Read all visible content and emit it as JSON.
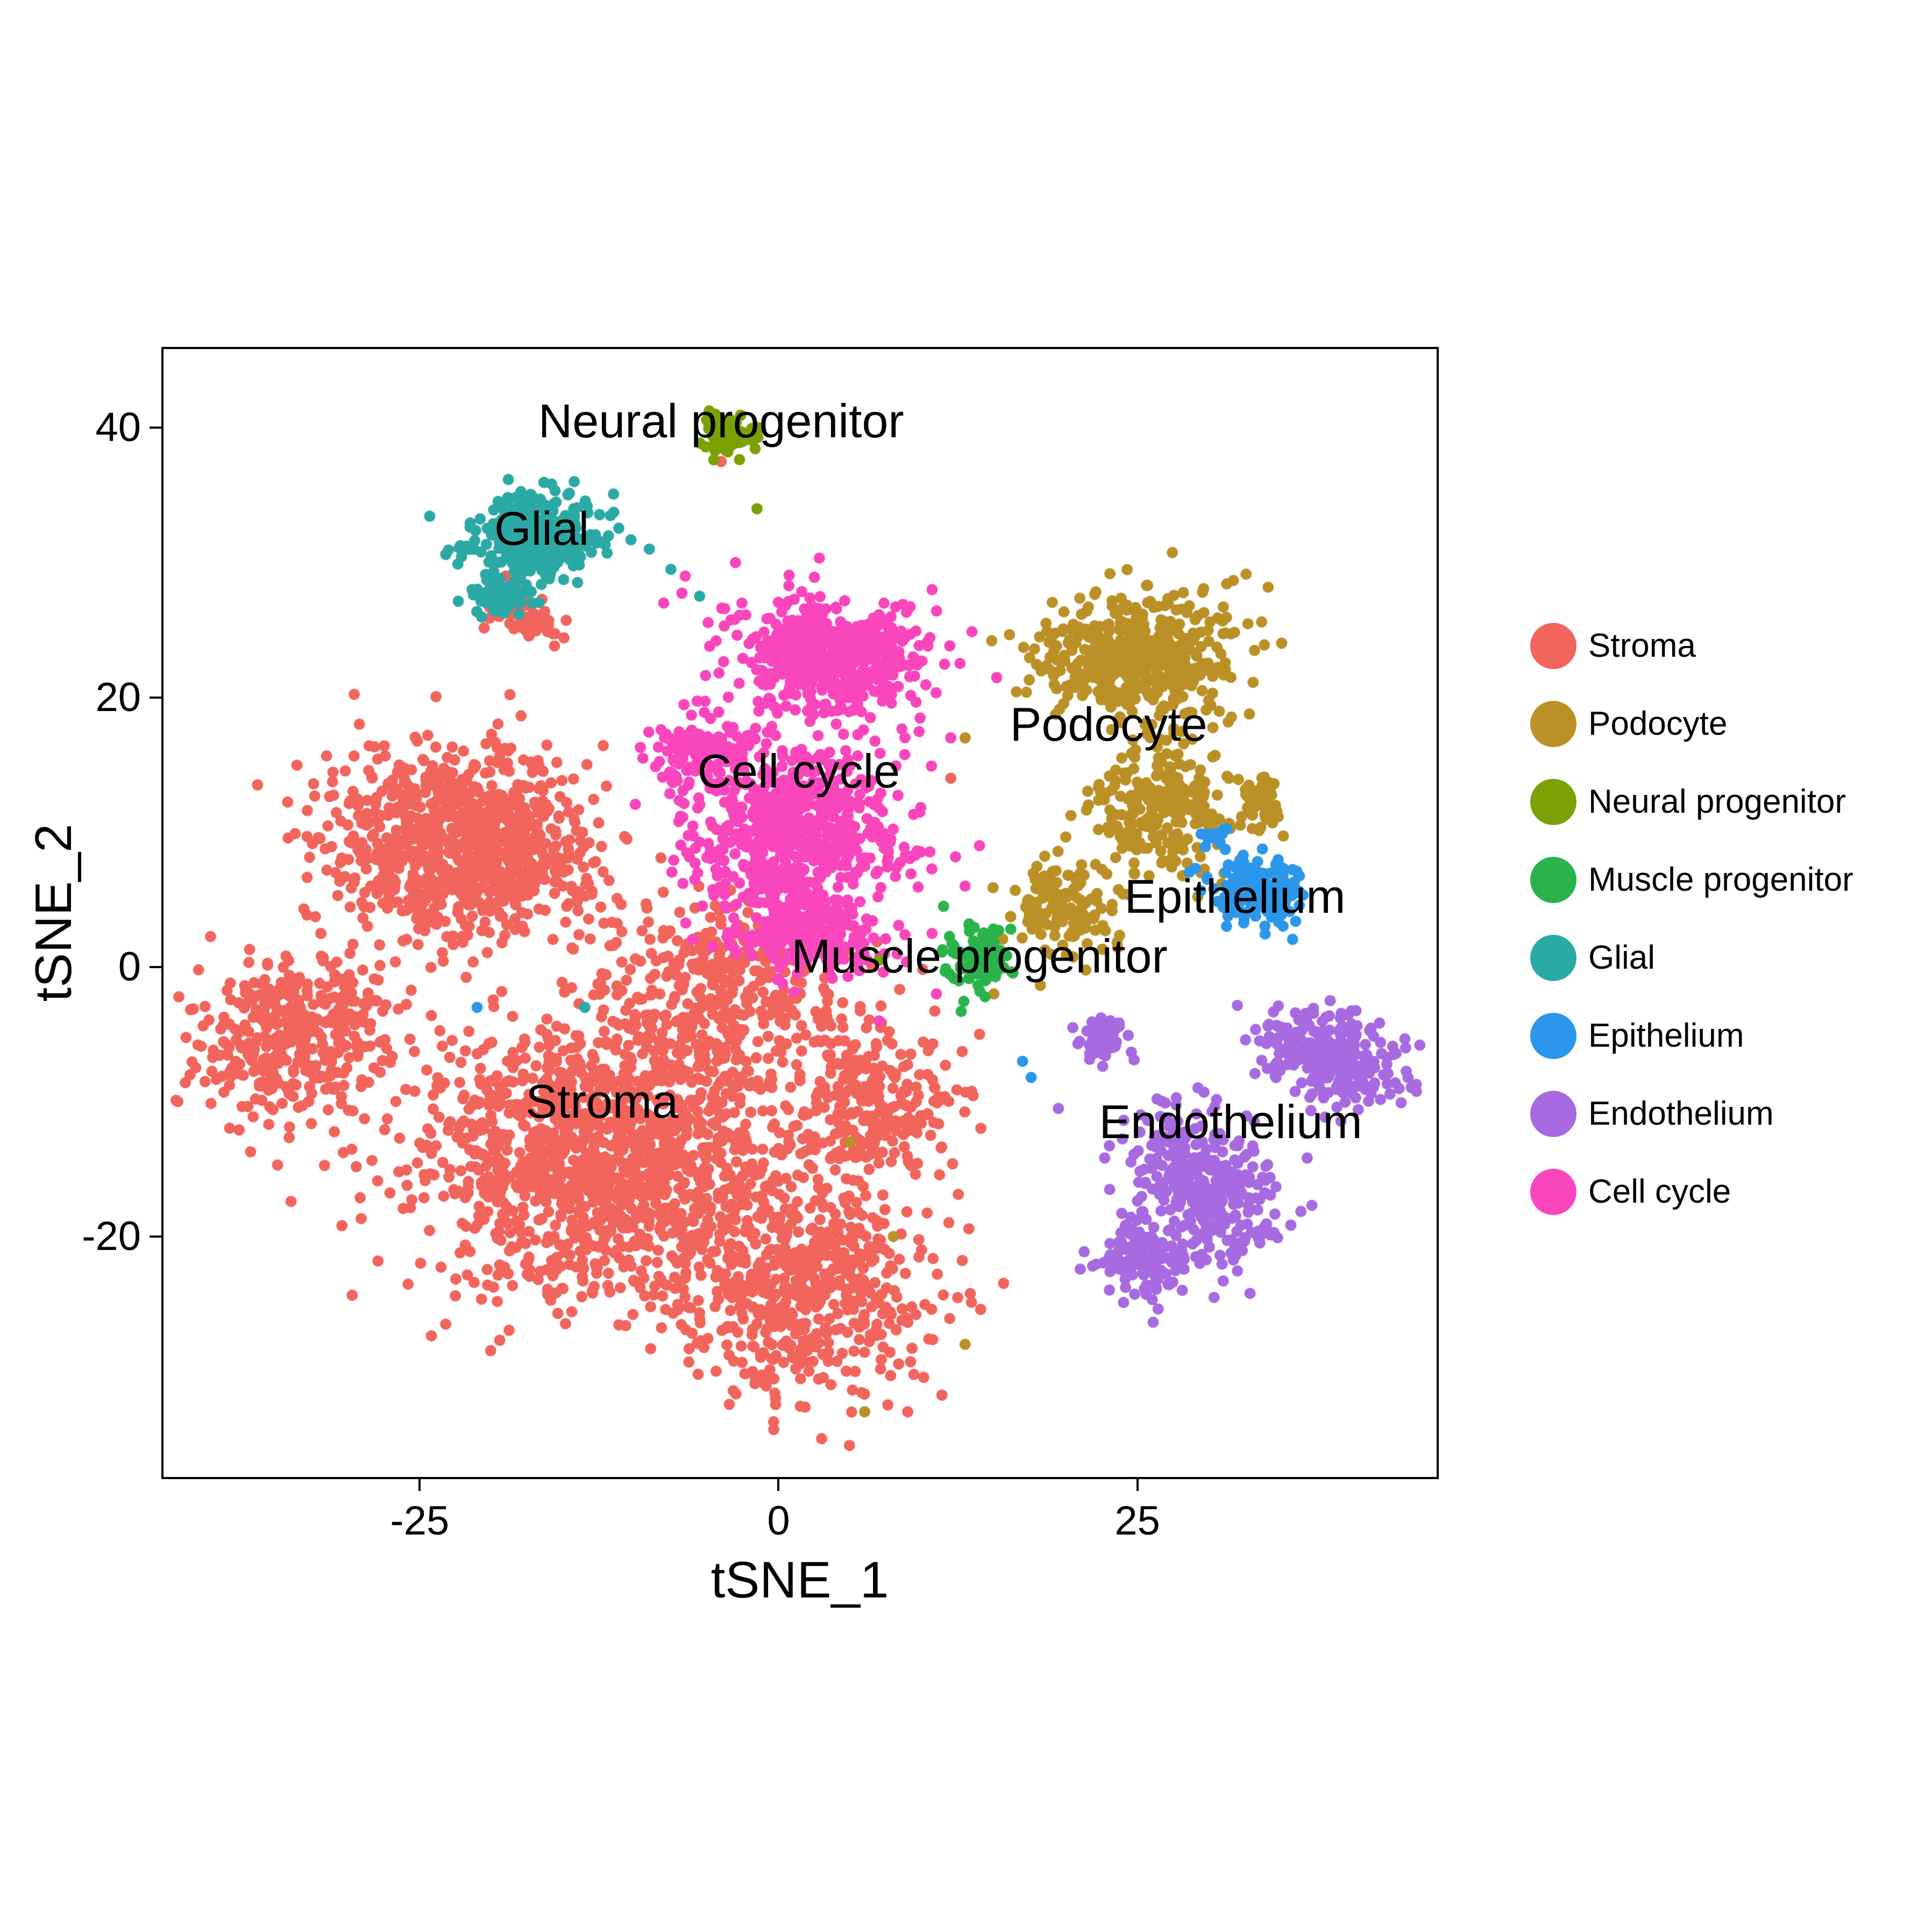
{
  "chart_data": {
    "type": "scatter",
    "title": "",
    "xlabel": "tSNE_1",
    "ylabel": "tSNE_2",
    "xlim": [
      -43,
      46
    ],
    "ylim": [
      -38,
      46
    ],
    "grid": false,
    "legend_position": "right",
    "seed": 20,
    "point_radius_px": 10.5,
    "x_ticks": [
      {
        "v": -25,
        "label": "-25"
      },
      {
        "v": 0,
        "label": "0"
      },
      {
        "v": 25,
        "label": "25"
      }
    ],
    "y_ticks": [
      {
        "v": -20,
        "label": "-20"
      },
      {
        "v": 0,
        "label": "0"
      },
      {
        "v": 20,
        "label": "20"
      },
      {
        "v": 40,
        "label": "40"
      }
    ],
    "clusters": [
      {
        "name": "Stroma",
        "color": "#F1655D",
        "z": 1,
        "label": {
          "text": "Stroma",
          "x": -12.3,
          "y": -10
        },
        "blobs": [
          {
            "cx": -22,
            "cy": 9,
            "rx": 9,
            "ry": 7,
            "n": 900
          },
          {
            "cx": -33.5,
            "cy": -5,
            "rx": 7,
            "ry": 6,
            "n": 400
          },
          {
            "cx": -12,
            "cy": -14,
            "rx": 14,
            "ry": 10,
            "n": 1400
          },
          {
            "cx": 2,
            "cy": -24,
            "rx": 9,
            "ry": 8,
            "n": 520
          },
          {
            "cx": -4,
            "cy": -2,
            "rx": 9,
            "ry": 7,
            "n": 380
          },
          {
            "cx": 7,
            "cy": -10,
            "rx": 5,
            "ry": 6,
            "n": 230
          },
          {
            "cx": -17.5,
            "cy": 25.5,
            "rx": 2.5,
            "ry": 1.6,
            "n": 45
          }
        ],
        "outliers": [
          [
            -4,
            37.5
          ],
          [
            12,
            14
          ],
          [
            -41,
            -8
          ],
          [
            3,
            -35
          ],
          [
            9,
            -33
          ],
          [
            14,
            -5
          ],
          [
            -19,
            29
          ]
        ]
      },
      {
        "name": "Podocyte",
        "color": "#BB9026",
        "z": 3,
        "label": {
          "text": "Podocyte",
          "x": 23,
          "y": 18
        },
        "blobs": [
          {
            "cx": 25,
            "cy": 23,
            "rx": 7,
            "ry": 5,
            "n": 470
          },
          {
            "cx": 27,
            "cy": 12,
            "rx": 5,
            "ry": 5,
            "n": 260
          },
          {
            "cx": 20,
            "cy": 4.5,
            "rx": 4,
            "ry": 3.5,
            "n": 130
          },
          {
            "cx": 33.5,
            "cy": 12.5,
            "rx": 1.8,
            "ry": 1.8,
            "n": 45
          }
        ],
        "outliers": [
          [
            8,
            -20
          ],
          [
            13,
            -28
          ],
          [
            5,
            -13
          ],
          [
            13,
            17
          ],
          [
            6,
            -33
          ],
          [
            15,
            -2
          ]
        ]
      },
      {
        "name": "Neural progenitor",
        "color": "#7CA104",
        "z": 5,
        "label": {
          "text": "Neural progenitor",
          "x": -4,
          "y": 40.5
        },
        "blobs": [
          {
            "cx": -3.5,
            "cy": 39.5,
            "rx": 2,
            "ry": 1.9,
            "n": 80
          }
        ],
        "outliers": [
          [
            -1.5,
            34
          ],
          [
            7,
            0.5
          ]
        ]
      },
      {
        "name": "Muscle progenitor",
        "color": "#2BB34B",
        "z": 8,
        "label": {
          "text": "Muscle progenitor",
          "x": 14,
          "y": 0.8
        },
        "blobs": [
          {
            "cx": 13.8,
            "cy": 0.8,
            "rx": 2,
            "ry": 2.4,
            "n": 100
          }
        ],
        "outliers": [
          [
            11.5,
            4.5
          ]
        ]
      },
      {
        "name": "Glial",
        "color": "#2BA9A4",
        "z": 4,
        "label": {
          "text": "Glial",
          "x": -16.5,
          "y": 32.5
        },
        "blobs": [
          {
            "cx": -17,
            "cy": 32,
            "rx": 4.5,
            "ry": 3,
            "n": 330
          },
          {
            "cx": -19.5,
            "cy": 27.5,
            "rx": 2,
            "ry": 1.5,
            "n": 60
          }
        ],
        "outliers": [
          [
            -9,
            31
          ],
          [
            -7.5,
            29.5
          ],
          [
            -13.5,
            -3
          ],
          [
            -5.5,
            27.5
          ]
        ]
      },
      {
        "name": "Epithelium",
        "color": "#2C97EA",
        "z": 7,
        "label": {
          "text": "Epithelium",
          "x": 31.8,
          "y": 5.2
        },
        "blobs": [
          {
            "cx": 33.5,
            "cy": 5.5,
            "rx": 3,
            "ry": 2.6,
            "n": 175
          },
          {
            "cx": 30.5,
            "cy": 9.5,
            "rx": 1,
            "ry": 1,
            "n": 14
          }
        ],
        "outliers": [
          [
            17,
            -7
          ],
          [
            17.6,
            -8.2
          ],
          [
            -21,
            -3
          ]
        ]
      },
      {
        "name": "Endothelium",
        "color": "#A76AE1",
        "z": 6,
        "label": {
          "text": "Endothelium",
          "x": 31.5,
          "y": -11.5
        },
        "blobs": [
          {
            "cx": 38.5,
            "cy": -6.5,
            "rx": 5.5,
            "ry": 3,
            "rot": -20,
            "n": 280
          },
          {
            "cx": 30,
            "cy": -16,
            "rx": 4,
            "ry": 6.5,
            "rot": 35,
            "n": 320
          },
          {
            "cx": 25.5,
            "cy": -21.5,
            "rx": 3,
            "ry": 3,
            "n": 150
          },
          {
            "cx": 22.5,
            "cy": -5.5,
            "rx": 1.6,
            "ry": 1.8,
            "n": 70
          }
        ],
        "outliers": [
          [
            20.5,
            -4.5
          ],
          [
            19.5,
            -10.5
          ]
        ]
      },
      {
        "name": "Cell cycle",
        "color": "#F946BC",
        "z": 2,
        "label": {
          "text": "Cell cycle",
          "x": 1.4,
          "y": 14.5
        },
        "blobs": [
          {
            "cx": 3.5,
            "cy": 23,
            "rx": 7,
            "ry": 4.5,
            "n": 540
          },
          {
            "cx": 1,
            "cy": 10,
            "rx": 7.5,
            "ry": 6.5,
            "n": 640
          },
          {
            "cx": 2,
            "cy": 2.5,
            "rx": 5,
            "ry": 3,
            "n": 210
          },
          {
            "cx": -5.5,
            "cy": 16,
            "rx": 3.5,
            "ry": 3,
            "n": 110
          }
        ],
        "outliers": [
          [
            12,
            17
          ],
          [
            14,
            9
          ],
          [
            13,
            6
          ],
          [
            -3,
            30
          ],
          [
            -6.5,
            29
          ],
          [
            11,
            -2
          ],
          [
            7,
            -4
          ],
          [
            -8,
            27
          ]
        ]
      }
    ]
  },
  "legend": {
    "items": [
      {
        "label": "Stroma",
        "color": "#F1655D"
      },
      {
        "label": "Podocyte",
        "color": "#BB9026"
      },
      {
        "label": "Neural progenitor",
        "color": "#7CA104"
      },
      {
        "label": "Muscle progenitor",
        "color": "#2BB34B"
      },
      {
        "label": "Glial",
        "color": "#2BA9A4"
      },
      {
        "label": "Epithelium",
        "color": "#2C97EA"
      },
      {
        "label": "Endothelium",
        "color": "#A76AE1"
      },
      {
        "label": "Cell cycle",
        "color": "#F946BC"
      }
    ]
  }
}
